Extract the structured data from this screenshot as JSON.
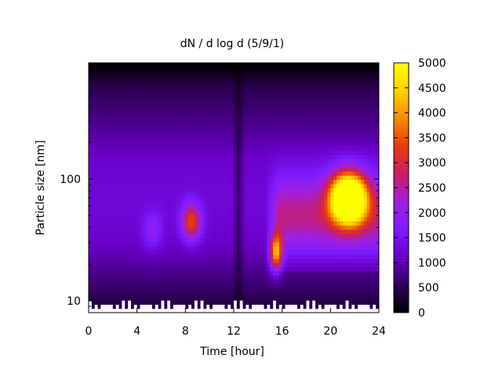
{
  "chart_data": {
    "type": "heatmap",
    "title": "dN / d log d (5/9/1)",
    "xlabel": "Time [hour]",
    "ylabel": "Particle size [nm]",
    "xlim": [
      0,
      24
    ],
    "x_ticks": [
      0,
      4,
      8,
      12,
      16,
      20,
      24
    ],
    "y_scale": "log",
    "ylim": [
      8,
      900
    ],
    "y_ticks": [
      10,
      100
    ],
    "colorbar": {
      "range": [
        0,
        5000
      ],
      "ticks": [
        0,
        500,
        1000,
        1500,
        2000,
        2500,
        3000,
        3500,
        4000,
        4500,
        5000
      ],
      "colormap": [
        "#000000",
        "#30005a",
        "#6a00c8",
        "#7d1cff",
        "#a020e0",
        "#c81e64",
        "#e63c0a",
        "#f58c00",
        "#ffd200",
        "#ffff00"
      ]
    },
    "features": [
      {
        "time": 8.5,
        "size_nm": 45,
        "value": 3300
      },
      {
        "time": 15.5,
        "size_nm": 25,
        "value": 4000
      },
      {
        "time": 21,
        "size_nm": 70,
        "value": 4500
      },
      {
        "time": 22,
        "size_nm": 70,
        "value": 4400
      },
      {
        "time": 5.3,
        "size_nm": 38,
        "value": 1900
      }
    ],
    "grid": false,
    "legend": "colorbar-right"
  }
}
